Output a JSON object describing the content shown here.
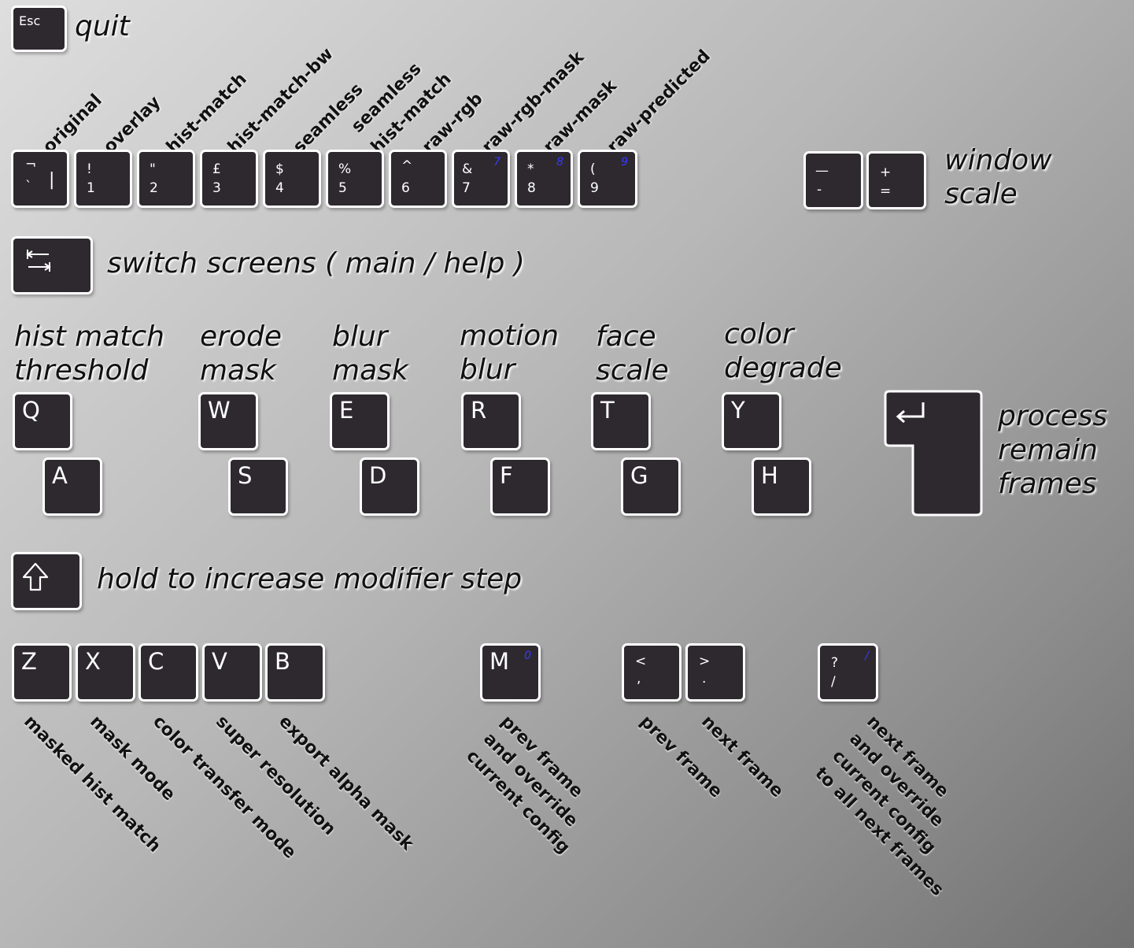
{
  "quit": {
    "key": "Esc",
    "label": "quit"
  },
  "modes": [
    {
      "label": "original",
      "shift": "¬",
      "main": "`",
      "main2": "|"
    },
    {
      "label": "overlay",
      "shift": "!",
      "main": "1"
    },
    {
      "label": "hist-match",
      "shift": "\"",
      "main": "2"
    },
    {
      "label": "hist-match-bw",
      "shift": "£",
      "main": "3"
    },
    {
      "label": "seamless",
      "shift": "$",
      "main": "4"
    },
    {
      "label1": "seamless",
      "label2": "hist-match",
      "shift": "%",
      "main": "5"
    },
    {
      "label": "raw-rgb",
      "shift": "^",
      "main": "6"
    },
    {
      "label": "raw-rgb-mask",
      "shift": "&",
      "main": "7",
      "numpad": "7"
    },
    {
      "label": "raw-mask",
      "shift": "*",
      "main": "8",
      "numpad": "8"
    },
    {
      "label": "raw-predicted",
      "shift": "(",
      "main": "9",
      "numpad": "9"
    }
  ],
  "window_scale": {
    "minus_top": "—",
    "minus_bottom": "-",
    "plus_top": "+",
    "plus_bottom": "=",
    "line1": "window",
    "line2": "scale"
  },
  "switch_screens": {
    "label": "switch screens ( main / help )"
  },
  "adjusters": [
    {
      "line1": "hist match",
      "line2": "threshold",
      "up": "Q",
      "down": "A"
    },
    {
      "line1": "erode",
      "line2": "mask",
      "up": "W",
      "down": "S"
    },
    {
      "line1": "blur",
      "line2": "mask",
      "up": "E",
      "down": "D"
    },
    {
      "line1": "motion",
      "line2": "blur",
      "up": "R",
      "down": "F"
    },
    {
      "line1": "face",
      "line2": "scale",
      "up": "T",
      "down": "G"
    },
    {
      "line1": "color",
      "line2": "degrade",
      "up": "Y",
      "down": "H"
    }
  ],
  "process": {
    "line1": "process",
    "line2": "remain",
    "line3": "frames"
  },
  "shift": {
    "label": "hold to increase modifier step"
  },
  "toggles": [
    {
      "key": "Z",
      "label": "masked hist match"
    },
    {
      "key": "X",
      "label": "mask mode"
    },
    {
      "key": "C",
      "label": "color transfer mode"
    },
    {
      "key": "V",
      "label": "super resolution"
    },
    {
      "key": "B",
      "label": "export alpha mask"
    }
  ],
  "nav": {
    "m": {
      "key": "M",
      "numpad": "0",
      "line1": "prev frame",
      "line2": "and override",
      "line3": "current config"
    },
    "prev": {
      "shift": "<",
      "main": ",",
      "label": "prev frame"
    },
    "next": {
      "shift": ">",
      "main": ".",
      "label": "next frame"
    },
    "slash": {
      "shift": "?",
      "main": "/",
      "numpad": "/",
      "line1": "next frame",
      "line2": "and override",
      "line3": "current config",
      "line4": "to all next frames"
    }
  },
  "colors": {
    "key_bg": "#2d292f",
    "key_border": "#ffffff",
    "numpad_accent": "#3a3aff"
  }
}
